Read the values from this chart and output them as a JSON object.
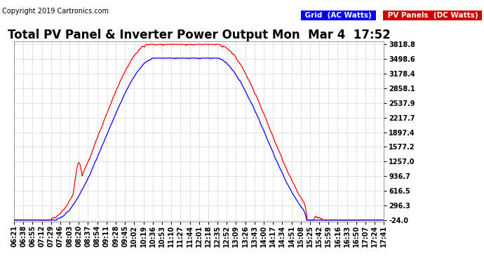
{
  "title": "Total PV Panel & Inverter Power Output Mon  Mar 4  17:52",
  "copyright": "Copyright 2019 Cartronics.com",
  "legend_grid": "Grid  (AC Watts)",
  "legend_pv": "PV Panels  (DC Watts)",
  "grid_color": "#0000FF",
  "pv_color": "#FF0000",
  "legend_grid_bg": "#0000FF",
  "legend_pv_bg": "#CC0000",
  "background_color": "#FFFFFF",
  "plot_bg_color": "#FFFFFF",
  "grid_line_color": "#C8C8C8",
  "yticks": [
    3818.8,
    3498.6,
    3178.4,
    2858.1,
    2537.9,
    2217.7,
    1897.4,
    1577.2,
    1257.0,
    936.7,
    616.5,
    296.3,
    -24.0
  ],
  "ymin": -24.0,
  "ymax": 3818.8,
  "xtick_labels": [
    "06:21",
    "06:38",
    "06:55",
    "07:12",
    "07:29",
    "07:46",
    "08:03",
    "08:20",
    "08:37",
    "08:54",
    "09:11",
    "09:28",
    "09:45",
    "10:02",
    "10:19",
    "10:36",
    "10:53",
    "11:10",
    "11:27",
    "11:44",
    "12:01",
    "12:18",
    "12:35",
    "12:52",
    "13:09",
    "13:26",
    "13:43",
    "14:00",
    "14:17",
    "14:34",
    "14:51",
    "15:08",
    "15:25",
    "15:42",
    "15:59",
    "16:16",
    "16:33",
    "16:50",
    "17:07",
    "17:24",
    "17:41"
  ],
  "title_fontsize": 12,
  "tick_fontsize": 7,
  "copyright_fontsize": 7,
  "legend_fontsize": 7.5
}
